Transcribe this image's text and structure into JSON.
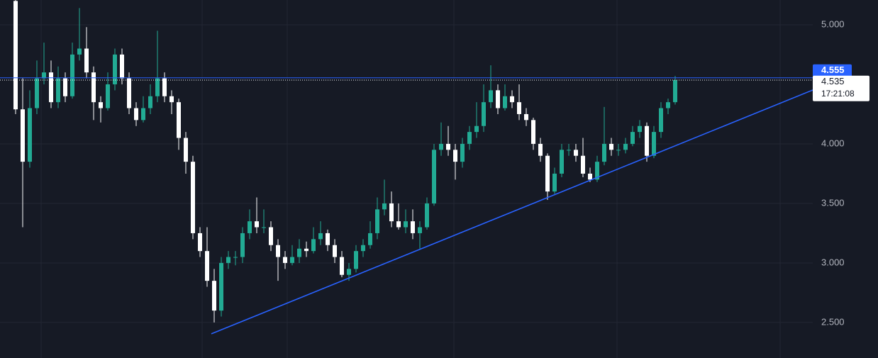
{
  "chart_data": {
    "type": "candlestick",
    "up_color": "#22ab94",
    "down_color": "#ffffff",
    "open": [
      5.2,
      4.29,
      3.85,
      4.3,
      4.55,
      4.6,
      4.35,
      4.55,
      4.4,
      4.75,
      4.8,
      4.6,
      4.35,
      4.3,
      4.5,
      4.75,
      4.55,
      4.3,
      4.2,
      4.3,
      4.4,
      4.55,
      4.4,
      4.35,
      4.05,
      3.85,
      3.25,
      3.1,
      2.85,
      2.6,
      3.0,
      3.05,
      3.05,
      3.25,
      3.35,
      3.3,
      3.3,
      3.15,
      3.05,
      3.0,
      3.05,
      3.12,
      3.1,
      3.2,
      3.25,
      3.15,
      3.05,
      2.9,
      2.95,
      3.1,
      3.15,
      3.25,
      3.45,
      3.5,
      3.35,
      3.3,
      3.35,
      3.25,
      3.3,
      3.5,
      3.95,
      4.0,
      3.95,
      3.85,
      4.0,
      4.1,
      4.15,
      4.35,
      4.45,
      4.3,
      4.4,
      4.35,
      4.25,
      4.2,
      4.0,
      3.9,
      3.6,
      3.75,
      3.95,
      3.95,
      3.9,
      3.75,
      3.7,
      3.85,
      4.0,
      3.95,
      3.95,
      4.0,
      4.1,
      4.15,
      3.9,
      4.1,
      4.3,
      4.35
    ],
    "high": [
      5.21,
      4.55,
      4.45,
      4.7,
      4.85,
      4.7,
      4.65,
      4.6,
      4.85,
      5.14,
      4.98,
      4.65,
      4.4,
      4.6,
      4.8,
      4.8,
      4.6,
      4.35,
      4.4,
      4.5,
      4.95,
      4.6,
      4.45,
      4.38,
      4.1,
      3.9,
      3.3,
      3.3,
      2.95,
      3.05,
      3.1,
      3.1,
      3.3,
      3.45,
      3.55,
      3.45,
      3.35,
      3.2,
      3.1,
      3.15,
      3.2,
      3.18,
      3.3,
      3.35,
      3.28,
      3.2,
      3.1,
      3.0,
      3.15,
      3.2,
      3.35,
      3.55,
      3.7,
      3.6,
      3.5,
      3.45,
      3.45,
      3.35,
      3.55,
      4.0,
      4.18,
      4.15,
      4.0,
      4.05,
      4.15,
      4.35,
      4.5,
      4.66,
      4.5,
      4.5,
      4.45,
      4.5,
      4.3,
      4.22,
      4.05,
      3.92,
      3.8,
      4.0,
      4.0,
      4.0,
      4.05,
      3.8,
      3.9,
      4.31,
      4.05,
      4.0,
      4.05,
      4.15,
      4.2,
      4.18,
      4.15,
      4.35,
      4.38,
      4.57
    ],
    "low": [
      4.25,
      3.3,
      3.8,
      4.25,
      4.5,
      4.3,
      4.3,
      4.35,
      4.38,
      4.7,
      4.55,
      4.2,
      4.18,
      4.28,
      4.45,
      4.5,
      4.25,
      4.15,
      4.18,
      4.25,
      4.35,
      4.35,
      4.25,
      3.95,
      3.75,
      3.2,
      3.05,
      2.8,
      2.5,
      2.55,
      2.95,
      2.98,
      3.0,
      3.2,
      3.25,
      3.25,
      3.1,
      2.85,
      2.95,
      2.98,
      3.0,
      3.05,
      3.08,
      3.15,
      3.1,
      3.0,
      2.88,
      2.85,
      2.92,
      3.05,
      3.12,
      3.2,
      3.4,
      3.3,
      3.28,
      3.25,
      3.2,
      3.12,
      3.28,
      3.48,
      3.9,
      3.9,
      3.7,
      3.8,
      3.95,
      4.05,
      4.1,
      4.3,
      4.25,
      4.28,
      4.3,
      4.2,
      4.15,
      3.95,
      3.85,
      3.53,
      3.58,
      3.72,
      3.9,
      3.85,
      3.72,
      3.68,
      3.68,
      3.82,
      3.9,
      3.9,
      3.92,
      3.98,
      4.05,
      3.85,
      3.88,
      4.05,
      4.25,
      4.33
    ],
    "close": [
      4.29,
      3.85,
      4.3,
      4.55,
      4.6,
      4.35,
      4.55,
      4.4,
      4.75,
      4.8,
      4.6,
      4.35,
      4.3,
      4.5,
      4.75,
      4.55,
      4.3,
      4.2,
      4.3,
      4.4,
      4.55,
      4.4,
      4.35,
      4.05,
      3.85,
      3.25,
      3.1,
      2.85,
      2.6,
      3.0,
      3.05,
      3.05,
      3.25,
      3.35,
      3.3,
      3.3,
      3.15,
      3.05,
      3.0,
      3.05,
      3.12,
      3.1,
      3.2,
      3.25,
      3.15,
      3.05,
      2.9,
      2.95,
      3.1,
      3.15,
      3.25,
      3.45,
      3.5,
      3.35,
      3.3,
      3.35,
      3.25,
      3.3,
      3.5,
      3.95,
      4.0,
      3.95,
      3.85,
      4.0,
      4.1,
      4.15,
      4.35,
      4.45,
      4.3,
      4.4,
      4.35,
      4.25,
      4.2,
      4.0,
      3.9,
      3.6,
      3.75,
      3.95,
      3.95,
      3.9,
      3.75,
      3.7,
      3.85,
      4.0,
      3.95,
      3.95,
      4.0,
      4.1,
      4.15,
      3.9,
      4.1,
      4.3,
      4.35,
      4.535
    ],
    "ylim": [
      2.202,
      5.208
    ],
    "yticks": [
      {
        "value": 2.5,
        "label": "2.500"
      },
      {
        "value": 3,
        "label": "3.000"
      },
      {
        "value": 3.5,
        "label": "3.500"
      },
      {
        "value": 4,
        "label": "4.000"
      },
      {
        "value": 5,
        "label": "5.000"
      }
    ],
    "grid": true,
    "price_line": 4.555,
    "price_line_color": "#2962ff",
    "last_price": 4.535,
    "countdown": "17:21:08",
    "trendline": [
      2.405,
      4.452
    ],
    "trendline_color": "#2962ff"
  }
}
